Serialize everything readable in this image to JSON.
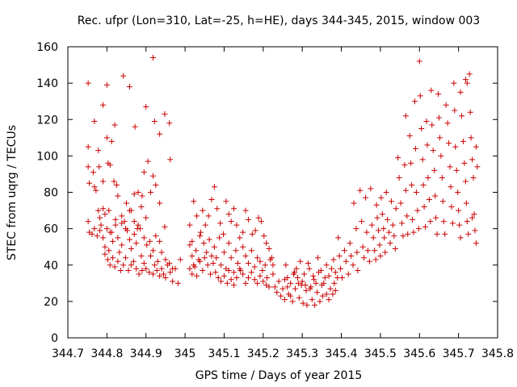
{
  "chart_data": {
    "type": "scatter",
    "title": "Rec. ufpr (Lon=310, Lat=-25, h=HE), days 344-345, 2015, window 003",
    "xlabel": "GPS time / Days of year 2015",
    "ylabel": "STEC from uqrg / TECUs",
    "xlim": [
      344.7,
      345.8
    ],
    "ylim": [
      0,
      160
    ],
    "xticks": [
      "344.7",
      "344.8",
      "344.9",
      "345",
      "345.1",
      "345.2",
      "345.3",
      "345.4",
      "345.5",
      "345.6",
      "345.7",
      "345.8"
    ],
    "yticks": [
      "0",
      "20",
      "40",
      "60",
      "80",
      "100",
      "120",
      "140",
      "160"
    ],
    "grid": false,
    "marker": "plus",
    "color": "#cc0000",
    "points": [
      [
        344.752,
        140
      ],
      [
        344.768,
        119
      ],
      [
        344.79,
        128
      ],
      [
        344.8,
        139
      ],
      [
        344.812,
        108
      ],
      [
        344.82,
        117
      ],
      [
        344.842,
        144
      ],
      [
        344.858,
        138
      ],
      [
        344.872,
        116
      ],
      [
        344.9,
        127
      ],
      [
        344.905,
        97
      ],
      [
        344.918,
        154
      ],
      [
        344.922,
        119
      ],
      [
        344.935,
        112
      ],
      [
        344.948,
        123
      ],
      [
        344.96,
        118
      ],
      [
        344.962,
        98
      ],
      [
        344.752,
        105
      ],
      [
        344.752,
        94
      ],
      [
        344.755,
        85
      ],
      [
        344.765,
        91
      ],
      [
        344.768,
        83
      ],
      [
        344.772,
        81
      ],
      [
        344.778,
        103
      ],
      [
        344.78,
        94
      ],
      [
        344.79,
        86
      ],
      [
        344.8,
        110
      ],
      [
        344.803,
        96
      ],
      [
        344.808,
        95
      ],
      [
        344.818,
        86
      ],
      [
        344.825,
        84
      ],
      [
        344.828,
        78
      ],
      [
        344.838,
        63
      ],
      [
        344.85,
        74
      ],
      [
        344.858,
        70
      ],
      [
        344.87,
        79
      ],
      [
        344.88,
        80
      ],
      [
        344.89,
        78
      ],
      [
        344.895,
        91
      ],
      [
        344.912,
        80
      ],
      [
        344.918,
        89
      ],
      [
        344.925,
        84
      ],
      [
        344.935,
        74
      ],
      [
        344.948,
        61
      ],
      [
        344.752,
        64
      ],
      [
        344.755,
        58
      ],
      [
        344.762,
        57
      ],
      [
        344.768,
        60
      ],
      [
        344.775,
        56
      ],
      [
        344.782,
        59
      ],
      [
        344.785,
        62
      ],
      [
        344.79,
        55
      ],
      [
        344.795,
        50
      ],
      [
        344.8,
        60
      ],
      [
        344.805,
        48
      ],
      [
        344.812,
        58
      ],
      [
        344.815,
        53
      ],
      [
        344.822,
        62
      ],
      [
        344.828,
        55
      ],
      [
        344.832,
        47
      ],
      [
        344.838,
        51
      ],
      [
        344.845,
        64
      ],
      [
        344.852,
        59
      ],
      [
        344.858,
        54
      ],
      [
        344.862,
        49
      ],
      [
        344.87,
        57
      ],
      [
        344.875,
        52
      ],
      [
        344.88,
        62
      ],
      [
        344.885,
        60
      ],
      [
        344.888,
        45
      ],
      [
        344.895,
        55
      ],
      [
        344.902,
        51
      ],
      [
        344.91,
        53
      ],
      [
        344.918,
        48
      ],
      [
        344.925,
        56
      ],
      [
        344.93,
        42
      ],
      [
        344.935,
        53
      ],
      [
        344.94,
        47
      ],
      [
        344.95,
        43
      ],
      [
        344.96,
        41
      ],
      [
        344.968,
        38
      ],
      [
        344.778,
        70
      ],
      [
        344.782,
        66
      ],
      [
        344.79,
        71
      ],
      [
        344.795,
        68
      ],
      [
        344.805,
        70
      ],
      [
        344.808,
        58
      ],
      [
        344.822,
        65
      ],
      [
        344.838,
        67
      ],
      [
        344.848,
        60
      ],
      [
        344.862,
        70
      ],
      [
        344.87,
        64
      ],
      [
        344.878,
        60
      ],
      [
        344.888,
        72
      ],
      [
        344.9,
        66
      ],
      [
        344.795,
        46
      ],
      [
        344.802,
        43
      ],
      [
        344.808,
        40
      ],
      [
        344.815,
        44
      ],
      [
        344.82,
        39
      ],
      [
        344.828,
        42
      ],
      [
        344.835,
        37
      ],
      [
        344.842,
        40
      ],
      [
        344.848,
        44
      ],
      [
        344.855,
        37
      ],
      [
        344.862,
        40
      ],
      [
        344.868,
        42
      ],
      [
        344.875,
        38
      ],
      [
        344.882,
        35
      ],
      [
        344.89,
        37
      ],
      [
        344.895,
        41
      ],
      [
        344.9,
        38
      ],
      [
        344.908,
        36
      ],
      [
        344.912,
        45
      ],
      [
        344.918,
        35
      ],
      [
        344.922,
        40
      ],
      [
        344.928,
        37
      ],
      [
        344.935,
        34
      ],
      [
        344.94,
        38
      ],
      [
        344.945,
        35
      ],
      [
        344.95,
        33
      ],
      [
        344.955,
        40
      ],
      [
        344.962,
        36
      ],
      [
        344.968,
        31
      ],
      [
        344.975,
        38
      ],
      [
        344.982,
        30
      ],
      [
        344.988,
        43
      ],
      [
        345.012,
        62
      ],
      [
        345.018,
        53
      ],
      [
        345.022,
        75
      ],
      [
        345.03,
        67
      ],
      [
        345.038,
        56
      ],
      [
        345.045,
        70
      ],
      [
        345.052,
        62
      ],
      [
        345.06,
        67
      ],
      [
        345.068,
        76
      ],
      [
        345.075,
        83
      ],
      [
        345.082,
        71
      ],
      [
        345.09,
        63
      ],
      [
        345.098,
        57
      ],
      [
        345.105,
        75
      ],
      [
        345.112,
        68
      ],
      [
        345.118,
        64
      ],
      [
        345.125,
        71
      ],
      [
        345.132,
        62
      ],
      [
        345.14,
        55
      ],
      [
        345.148,
        58
      ],
      [
        345.155,
        70
      ],
      [
        345.162,
        65
      ],
      [
        345.172,
        57
      ],
      [
        345.18,
        59
      ],
      [
        345.188,
        66
      ],
      [
        345.195,
        64
      ],
      [
        345.202,
        56
      ],
      [
        345.208,
        52
      ],
      [
        345.215,
        49
      ],
      [
        345.222,
        44
      ],
      [
        345.012,
        51
      ],
      [
        345.018,
        45
      ],
      [
        345.022,
        40
      ],
      [
        345.028,
        48
      ],
      [
        345.035,
        43
      ],
      [
        345.04,
        58
      ],
      [
        345.048,
        52
      ],
      [
        345.055,
        47
      ],
      [
        345.062,
        54
      ],
      [
        345.068,
        45
      ],
      [
        345.075,
        50
      ],
      [
        345.08,
        44
      ],
      [
        345.088,
        55
      ],
      [
        345.092,
        40
      ],
      [
        345.1,
        47
      ],
      [
        345.105,
        38
      ],
      [
        345.112,
        52
      ],
      [
        345.118,
        44
      ],
      [
        345.125,
        36
      ],
      [
        345.13,
        48
      ],
      [
        345.135,
        41
      ],
      [
        345.142,
        37
      ],
      [
        345.148,
        50
      ],
      [
        345.155,
        45
      ],
      [
        345.162,
        41
      ],
      [
        345.17,
        48
      ],
      [
        345.178,
        39
      ],
      [
        345.185,
        44
      ],
      [
        345.192,
        42
      ],
      [
        345.198,
        37
      ],
      [
        345.205,
        40
      ],
      [
        345.21,
        33
      ],
      [
        345.218,
        43
      ],
      [
        345.225,
        40
      ],
      [
        345.012,
        38
      ],
      [
        345.018,
        35
      ],
      [
        345.025,
        39
      ],
      [
        345.03,
        34
      ],
      [
        345.038,
        42
      ],
      [
        345.045,
        37
      ],
      [
        345.05,
        44
      ],
      [
        345.058,
        40
      ],
      [
        345.065,
        35
      ],
      [
        345.072,
        41
      ],
      [
        345.078,
        36
      ],
      [
        345.085,
        33
      ],
      [
        345.092,
        31
      ],
      [
        345.1,
        34
      ],
      [
        345.108,
        30
      ],
      [
        345.112,
        37
      ],
      [
        345.118,
        32
      ],
      [
        345.125,
        29
      ],
      [
        345.132,
        33
      ],
      [
        345.14,
        38
      ],
      [
        345.148,
        35
      ],
      [
        345.155,
        30
      ],
      [
        345.162,
        33
      ],
      [
        345.17,
        36
      ],
      [
        345.178,
        32
      ],
      [
        345.185,
        30
      ],
      [
        345.192,
        34
      ],
      [
        345.2,
        31
      ],
      [
        345.208,
        29
      ],
      [
        345.215,
        28
      ],
      [
        345.225,
        35
      ],
      [
        345.23,
        28
      ],
      [
        345.235,
        25
      ],
      [
        345.24,
        31
      ],
      [
        345.245,
        23
      ],
      [
        345.25,
        27
      ],
      [
        345.255,
        21
      ],
      [
        345.258,
        40
      ],
      [
        345.262,
        33
      ],
      [
        345.265,
        24
      ],
      [
        345.27,
        30
      ],
      [
        345.275,
        20
      ],
      [
        345.28,
        36
      ],
      [
        345.282,
        27
      ],
      [
        345.288,
        33
      ],
      [
        345.292,
        22
      ],
      [
        345.295,
        42
      ],
      [
        345.298,
        29
      ],
      [
        345.302,
        19
      ],
      [
        345.305,
        35
      ],
      [
        345.31,
        26
      ],
      [
        345.312,
        18
      ],
      [
        345.318,
        38
      ],
      [
        345.32,
        27
      ],
      [
        345.325,
        21
      ],
      [
        345.33,
        32
      ],
      [
        345.332,
        18
      ],
      [
        345.338,
        25
      ],
      [
        345.342,
        36
      ],
      [
        345.345,
        20
      ],
      [
        345.35,
        29
      ],
      [
        345.352,
        23
      ],
      [
        345.358,
        33
      ],
      [
        345.362,
        24
      ],
      [
        345.368,
        21
      ],
      [
        345.372,
        27
      ],
      [
        345.378,
        24
      ],
      [
        345.382,
        30
      ],
      [
        345.385,
        26
      ],
      [
        345.255,
        32
      ],
      [
        345.262,
        28
      ],
      [
        345.27,
        23
      ],
      [
        345.278,
        35
      ],
      [
        345.285,
        38
      ],
      [
        345.29,
        30
      ],
      [
        345.3,
        31
      ],
      [
        345.308,
        29
      ],
      [
        345.315,
        41
      ],
      [
        345.322,
        28
      ],
      [
        345.328,
        34
      ],
      [
        345.335,
        30
      ],
      [
        345.34,
        44
      ],
      [
        345.348,
        37
      ],
      [
        345.355,
        30
      ],
      [
        345.362,
        40
      ],
      [
        345.368,
        34
      ],
      [
        345.375,
        38
      ],
      [
        345.38,
        43
      ],
      [
        345.385,
        36
      ],
      [
        345.39,
        33
      ],
      [
        345.392,
        55
      ],
      [
        345.395,
        45
      ],
      [
        345.398,
        38
      ],
      [
        345.402,
        33
      ],
      [
        345.408,
        48
      ],
      [
        345.412,
        42
      ],
      [
        345.418,
        35
      ],
      [
        345.422,
        52
      ],
      [
        345.425,
        45
      ],
      [
        345.43,
        40
      ],
      [
        345.432,
        74
      ],
      [
        345.438,
        60
      ],
      [
        345.44,
        47
      ],
      [
        345.442,
        37
      ],
      [
        345.448,
        81
      ],
      [
        345.452,
        64
      ],
      [
        345.455,
        50
      ],
      [
        345.458,
        44
      ],
      [
        345.462,
        77
      ],
      [
        345.465,
        58
      ],
      [
        345.468,
        48
      ],
      [
        345.472,
        42
      ],
      [
        345.475,
        82
      ],
      [
        345.478,
        62
      ],
      [
        345.482,
        55
      ],
      [
        345.485,
        48
      ],
      [
        345.488,
        43
      ],
      [
        345.49,
        73
      ],
      [
        345.492,
        66
      ],
      [
        345.495,
        59
      ],
      [
        345.498,
        51
      ],
      [
        345.5,
        45
      ],
      [
        345.502,
        77
      ],
      [
        345.505,
        68
      ],
      [
        345.508,
        60
      ],
      [
        345.51,
        55
      ],
      [
        345.512,
        47
      ],
      [
        345.515,
        80
      ],
      [
        345.518,
        65
      ],
      [
        345.522,
        58
      ],
      [
        345.525,
        52
      ],
      [
        345.528,
        75
      ],
      [
        345.532,
        62
      ],
      [
        345.535,
        56
      ],
      [
        345.538,
        49
      ],
      [
        345.54,
        71
      ],
      [
        345.545,
        99
      ],
      [
        345.548,
        88
      ],
      [
        345.552,
        74
      ],
      [
        345.555,
        63
      ],
      [
        345.558,
        56
      ],
      [
        345.562,
        95
      ],
      [
        345.565,
        81
      ],
      [
        345.568,
        67
      ],
      [
        345.57,
        57
      ],
      [
        345.565,
        122
      ],
      [
        345.575,
        111
      ],
      [
        345.578,
        96
      ],
      [
        345.58,
        84
      ],
      [
        345.582,
        65
      ],
      [
        345.585,
        58
      ],
      [
        345.588,
        130
      ],
      [
        345.59,
        104
      ],
      [
        345.592,
        80
      ],
      [
        345.595,
        70
      ],
      [
        345.598,
        60
      ],
      [
        345.6,
        152
      ],
      [
        345.602,
        133
      ],
      [
        345.605,
        115
      ],
      [
        345.608,
        98
      ],
      [
        345.61,
        84
      ],
      [
        345.612,
        72
      ],
      [
        345.615,
        61
      ],
      [
        345.618,
        119
      ],
      [
        345.62,
        106
      ],
      [
        345.622,
        88
      ],
      [
        345.625,
        76
      ],
      [
        345.628,
        64
      ],
      [
        345.63,
        136
      ],
      [
        345.632,
        117
      ],
      [
        345.635,
        103
      ],
      [
        345.638,
        92
      ],
      [
        345.64,
        78
      ],
      [
        345.642,
        66
      ],
      [
        345.645,
        57
      ],
      [
        345.648,
        134
      ],
      [
        345.65,
        121
      ],
      [
        345.652,
        110
      ],
      [
        345.655,
        100
      ],
      [
        345.658,
        88
      ],
      [
        345.66,
        75
      ],
      [
        345.662,
        64
      ],
      [
        345.665,
        57
      ],
      [
        345.668,
        128
      ],
      [
        345.672,
        118
      ],
      [
        345.675,
        107
      ],
      [
        345.678,
        94
      ],
      [
        345.68,
        83
      ],
      [
        345.682,
        72
      ],
      [
        345.685,
        63
      ],
      [
        345.688,
        140
      ],
      [
        345.69,
        125
      ],
      [
        345.692,
        105
      ],
      [
        345.695,
        92
      ],
      [
        345.698,
        80
      ],
      [
        345.7,
        70
      ],
      [
        345.702,
        62
      ],
      [
        345.705,
        55
      ],
      [
        345.705,
        135
      ],
      [
        345.708,
        122
      ],
      [
        345.712,
        108
      ],
      [
        345.715,
        96
      ],
      [
        345.718,
        86
      ],
      [
        345.72,
        74
      ],
      [
        345.722,
        64
      ],
      [
        345.725,
        57
      ],
      [
        345.718,
        142
      ],
      [
        345.722,
        140
      ],
      [
        345.728,
        145
      ],
      [
        345.73,
        124
      ],
      [
        345.732,
        110
      ],
      [
        345.735,
        98
      ],
      [
        345.738,
        88
      ],
      [
        345.74,
        68
      ],
      [
        345.742,
        59
      ],
      [
        345.745,
        52
      ],
      [
        345.745,
        105
      ],
      [
        345.748,
        94
      ],
      [
        345.735,
        66
      ]
    ]
  }
}
